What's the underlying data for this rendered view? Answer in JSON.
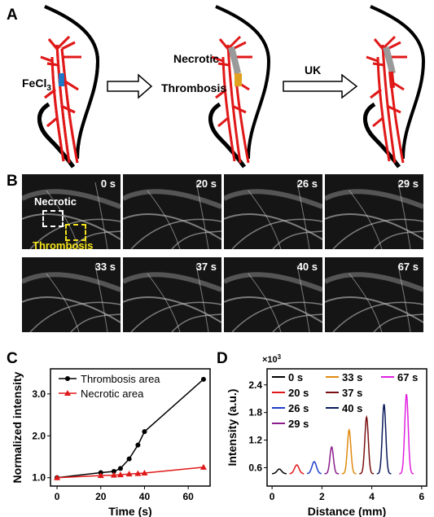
{
  "panels": {
    "a": "A",
    "b": "B",
    "c": "C",
    "d": "D"
  },
  "panel_a": {
    "fecl3_label": "FeCl",
    "fecl3_sub": "3",
    "necrotic_label": "Necrotic",
    "thrombosis_label": "Thrombosis",
    "uk_label": "UK",
    "colors": {
      "vessel": "#e01818",
      "injury": "#1f77c8",
      "necrotic": "#9a9a9a",
      "thrombus": "#e0a020",
      "outline": "#000000"
    }
  },
  "panel_b": {
    "frames": [
      "0 s",
      "20 s",
      "26 s",
      "29 s",
      "33 s",
      "37 s",
      "40 s",
      "67 s"
    ],
    "necrotic_label": "Necrotic",
    "thrombosis_label": "Thrombosis",
    "colors": {
      "necrotic_box": "#ffffff",
      "thrombosis_box": "#f2e21a"
    }
  },
  "chart_data": [
    {
      "type": "line",
      "panel": "C",
      "xlabel": "Time (s)",
      "ylabel": "Normalized intensity",
      "xlim": [
        -3,
        70
      ],
      "ylim": [
        0.8,
        3.6
      ],
      "xticks": [
        0,
        20,
        40,
        60
      ],
      "yticks": [
        "1.0",
        "2.0",
        "3.0"
      ],
      "legend_position": "top-left",
      "series": [
        {
          "name": "Thrombosis area",
          "color": "#000000",
          "marker": "circle",
          "x": [
            0,
            20,
            26,
            29,
            33,
            37,
            40,
            67
          ],
          "y": [
            1.0,
            1.12,
            1.15,
            1.22,
            1.45,
            1.78,
            2.1,
            3.35
          ]
        },
        {
          "name": "Necrotic area",
          "color": "#e01818",
          "marker": "triangle",
          "x": [
            0,
            20,
            26,
            29,
            33,
            37,
            40,
            67
          ],
          "y": [
            1.0,
            1.05,
            1.06,
            1.07,
            1.09,
            1.1,
            1.11,
            1.25
          ]
        }
      ]
    },
    {
      "type": "line",
      "panel": "D",
      "xlabel": "Distance (mm)",
      "ylabel": "Intensity (a.u.)",
      "y_multiplier": "×10",
      "y_multiplier_exp": "3",
      "xlim": [
        -0.2,
        6.2
      ],
      "ylim": [
        0.2,
        2.75
      ],
      "xticks": [
        0,
        2,
        4,
        6
      ],
      "yticks": [
        "0.6",
        "1.2",
        "1.8",
        "2.4"
      ],
      "legend_position": "top",
      "series": [
        {
          "name": "0 s",
          "color": "#000000",
          "offset": 0.0,
          "peak": 0.57
        },
        {
          "name": "20 s",
          "color": "#e01818",
          "offset": 0.7,
          "peak": 0.66
        },
        {
          "name": "26 s",
          "color": "#1f3fc8",
          "offset": 1.4,
          "peak": 0.73
        },
        {
          "name": "29 s",
          "color": "#8a1e8a",
          "offset": 2.1,
          "peak": 1.05
        },
        {
          "name": "33 s",
          "color": "#e08a10",
          "offset": 2.8,
          "peak": 1.42
        },
        {
          "name": "37 s",
          "color": "#7a1010",
          "offset": 3.5,
          "peak": 1.7
        },
        {
          "name": "40 s",
          "color": "#0a1a5a",
          "offset": 4.2,
          "peak": 1.98
        },
        {
          "name": "67 s",
          "color": "#e020e0",
          "offset": 5.1,
          "peak": 2.2
        }
      ]
    }
  ]
}
